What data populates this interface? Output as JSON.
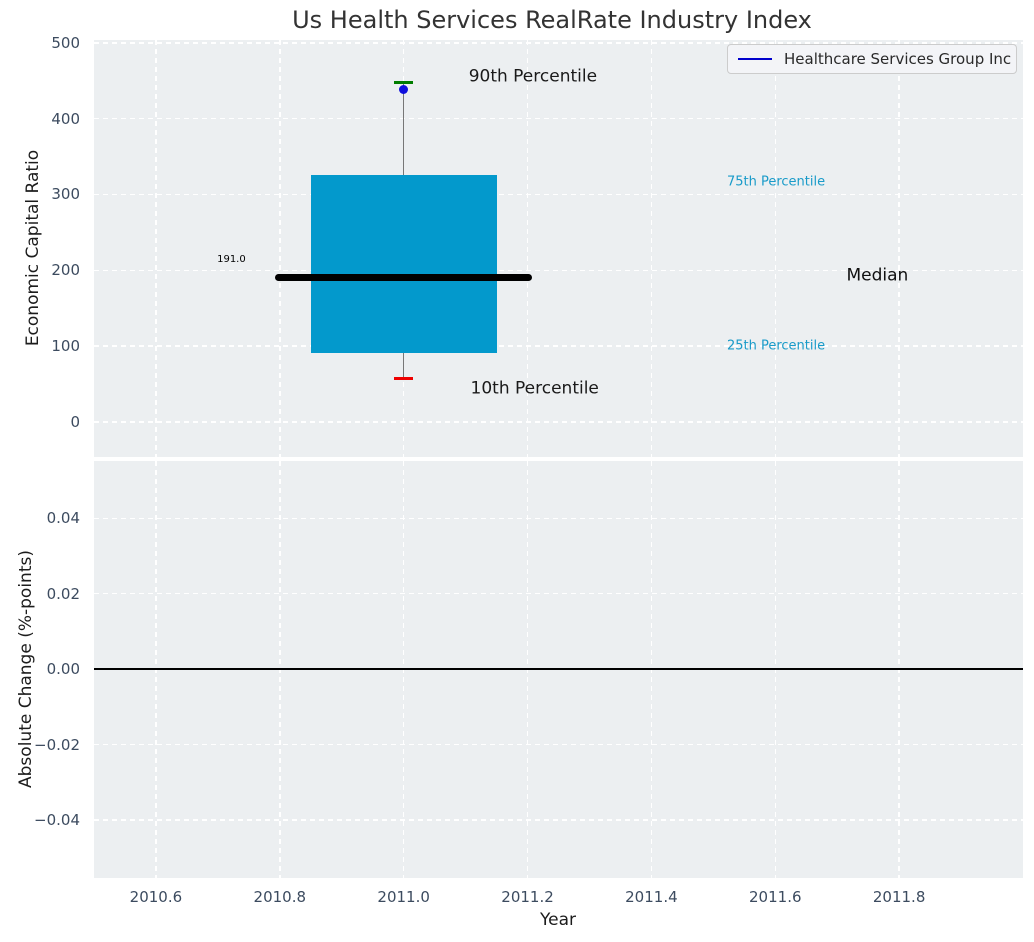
{
  "title": "Us Health Services RealRate Industry Index",
  "legend": {
    "label": "Healthcare Services Group Inc",
    "line_color": "#0000cc"
  },
  "xaxis": {
    "label": "Year",
    "tick_values": [
      2010.6,
      2010.8,
      2011.0,
      2011.2,
      2011.4,
      2011.6,
      2011.8
    ],
    "tick_labels": [
      "2010.6",
      "2010.8",
      "2011.0",
      "2011.2",
      "2011.4",
      "2011.6",
      "2011.8"
    ]
  },
  "chart_data": [
    {
      "type": "boxplot",
      "title": "Us Health Services RealRate Industry Index",
      "xlabel": "Year",
      "ylabel": "Economic Capital Ratio",
      "xlim": [
        2010.5,
        2012.0
      ],
      "ylim": [
        -46.3,
        503.7
      ],
      "grid": "white-dashed",
      "legend_position": "upper right",
      "yticks": {
        "values": [
          0,
          100,
          200,
          300,
          400,
          500
        ],
        "labels": [
          "0",
          "100",
          "200",
          "300",
          "400",
          "500"
        ]
      },
      "box": {
        "x": 2011.0,
        "median": 191.0,
        "p25": 91,
        "p75": 325,
        "p10": 57,
        "p90": 447,
        "box_halfwidth": 0.15,
        "median_halfwidth": 0.2075,
        "cap_halfwidth": 0.0155
      },
      "point": {
        "series": "Healthcare Services Group Inc",
        "x": 2011.0,
        "y": 438,
        "color": "#0f0fdd"
      },
      "colors": {
        "box_fill": "#0399cc",
        "median_line": "#000000",
        "whisker": "#777777",
        "cap_90th": "#007d00",
        "cap_10th": "#ee0000",
        "percentile_text": "#199bc9"
      },
      "annotations": [
        {
          "id": "p90-label",
          "text": "90th Percentile",
          "x": 2011.105,
          "y": 455,
          "ha": "left",
          "color": "#1a1a1a",
          "size": 17
        },
        {
          "id": "p10-label",
          "text": "10th Percentile",
          "x": 2011.108,
          "y": 43,
          "ha": "left",
          "color": "#1a1a1a",
          "size": 17
        },
        {
          "id": "p75-label",
          "text": "75th Percentile",
          "x": 2011.522,
          "y": 316,
          "ha": "left",
          "color": "#199bc9",
          "size": 13
        },
        {
          "id": "p25-label",
          "text": "25th Percentile",
          "x": 2011.522,
          "y": 100,
          "ha": "left",
          "color": "#199bc9",
          "size": 13
        },
        {
          "id": "median-label",
          "text": "Median",
          "x": 2011.715,
          "y": 193,
          "ha": "left",
          "color": "#111111",
          "size": 17
        },
        {
          "id": "median-value-label",
          "text": "191.0",
          "x": 2010.745,
          "y": 213,
          "ha": "right",
          "color": "#000000",
          "size": 10
        }
      ]
    },
    {
      "type": "line",
      "xlabel": "Year",
      "ylabel": "Absolute Change (%-points)",
      "xlim": [
        2010.5,
        2012.0
      ],
      "ylim": [
        -0.0554,
        0.0552
      ],
      "grid": "white-dashed",
      "yticks": {
        "values": [
          0.04,
          0.02,
          0.0,
          -0.02,
          -0.04
        ],
        "labels": [
          "0.04",
          "0.02",
          "0.00",
          "−0.02",
          "−0.04"
        ]
      },
      "zero_line": {
        "y": 0.0,
        "color": "#000000"
      },
      "series": []
    }
  ]
}
